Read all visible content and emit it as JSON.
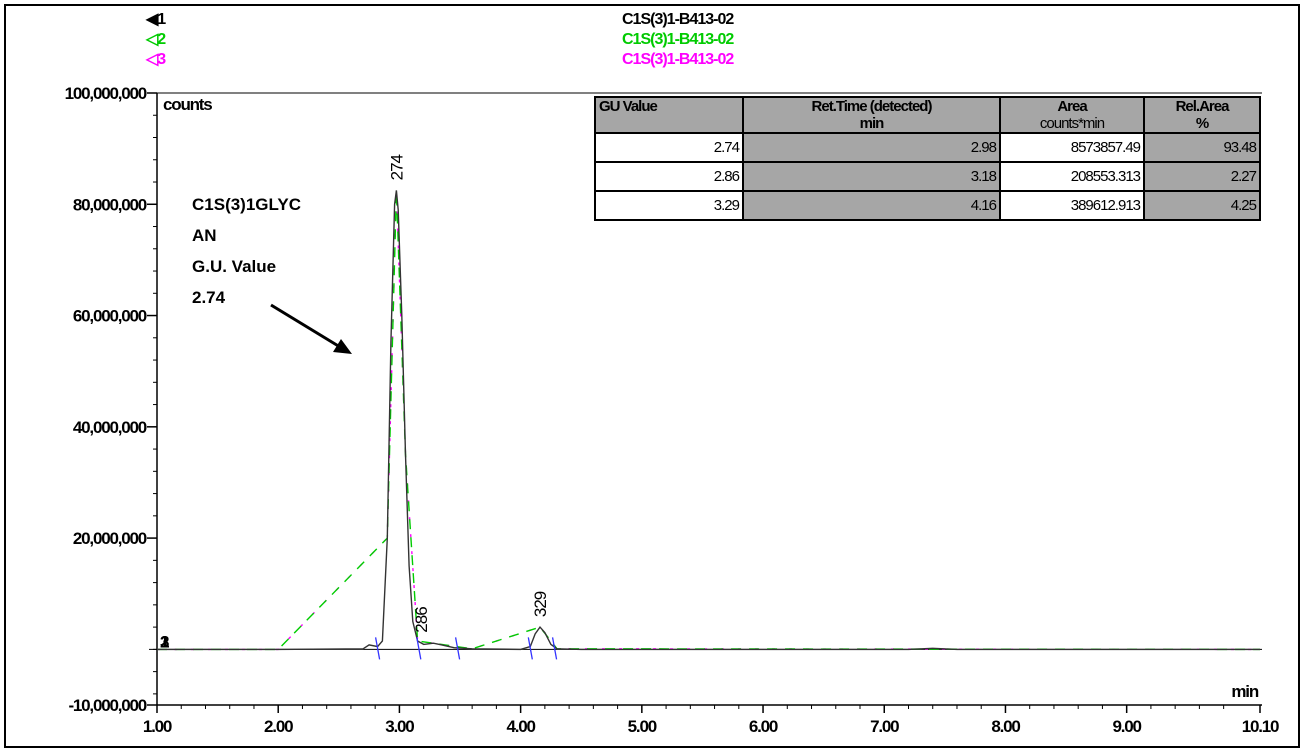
{
  "legend": [
    {
      "marker": "◀1",
      "label": "C1S(3)1-B413-02",
      "color": "#000000"
    },
    {
      "marker": "◁2",
      "label": "C1S(3)1-B413-02",
      "color": "#00cc00"
    },
    {
      "marker": "◁3",
      "label": "C1S(3)1-B413-02",
      "color": "#ff00ff"
    }
  ],
  "annotation": {
    "lines": [
      "C1S(3)1GLYC",
      "AN",
      "G.U. Value",
      "2.74"
    ]
  },
  "table": {
    "headers": [
      {
        "top": "GU Value",
        "unit": ""
      },
      {
        "top": "Ret.Time (detected)",
        "unit": "min"
      },
      {
        "top": "Area",
        "unit": "counts*min"
      },
      {
        "top": "Rel.Area",
        "unit": "%"
      }
    ],
    "rows": [
      [
        "2.74",
        "2.98",
        "8573857.49",
        "93.48"
      ],
      [
        "2.86",
        "3.18",
        "208553.313",
        "2.27"
      ],
      [
        "3.29",
        "4.16",
        "389612.913",
        "4.25"
      ]
    ]
  },
  "chart_data": {
    "type": "line",
    "ylabel": "counts",
    "xlabel": "min",
    "xlim": [
      1.0,
      10.1
    ],
    "ylim": [
      -10000000,
      100000000
    ],
    "x_ticks": [
      "1.00",
      "2.00",
      "3.00",
      "4.00",
      "5.00",
      "6.00",
      "7.00",
      "8.00",
      "9.00",
      "10.10"
    ],
    "y_ticks": [
      "-10,000,000",
      "20,000,000",
      "40,000,000",
      "60,000,000",
      "80,000,000",
      "100,000,000"
    ],
    "series": [
      {
        "name": "1",
        "color": "#333333",
        "points": [
          [
            1.0,
            0
          ],
          [
            2.0,
            0
          ],
          [
            2.7,
            100000
          ],
          [
            2.75,
            800000
          ],
          [
            2.82,
            500000
          ],
          [
            2.86,
            1500000
          ],
          [
            2.9,
            20000000
          ],
          [
            2.93,
            55000000
          ],
          [
            2.96,
            80000000
          ],
          [
            2.975,
            82500000
          ],
          [
            2.99,
            79000000
          ],
          [
            3.02,
            60000000
          ],
          [
            3.05,
            35000000
          ],
          [
            3.08,
            15000000
          ],
          [
            3.11,
            5000000
          ],
          [
            3.15,
            1500000
          ],
          [
            3.2,
            900000
          ],
          [
            3.28,
            1100000
          ],
          [
            3.35,
            800000
          ],
          [
            3.45,
            300000
          ],
          [
            3.6,
            100000
          ],
          [
            4.0,
            0
          ],
          [
            4.08,
            500000
          ],
          [
            4.12,
            2800000
          ],
          [
            4.16,
            4000000
          ],
          [
            4.2,
            3000000
          ],
          [
            4.25,
            900000
          ],
          [
            4.3,
            100000
          ],
          [
            4.5,
            0
          ],
          [
            7.2,
            0
          ],
          [
            7.4,
            200000
          ],
          [
            7.6,
            0
          ],
          [
            10.1,
            0
          ]
        ]
      },
      {
        "name": "2",
        "color": "#00cc00",
        "points": [
          [
            1.0,
            0
          ],
          [
            2.0,
            0
          ],
          [
            2.9,
            20000000
          ],
          [
            2.975,
            82500000
          ],
          [
            3.05,
            35000000
          ],
          [
            3.15,
            1500000
          ],
          [
            3.6,
            100000
          ],
          [
            4.16,
            4000000
          ],
          [
            4.3,
            100000
          ],
          [
            10.1,
            0
          ]
        ]
      },
      {
        "name": "3",
        "color": "#ff00ff",
        "points": [
          [
            1.0,
            0
          ],
          [
            2.0,
            0
          ],
          [
            2.9,
            20000000
          ],
          [
            2.975,
            82500000
          ],
          [
            3.05,
            35000000
          ],
          [
            3.15,
            1500000
          ],
          [
            3.6,
            100000
          ],
          [
            4.16,
            4000000
          ],
          [
            4.3,
            100000
          ],
          [
            10.1,
            0
          ]
        ]
      }
    ],
    "peaks": [
      {
        "x": 2.975,
        "y": 82500000,
        "label": "274"
      },
      {
        "x": 3.18,
        "y": 1200000,
        "label": "286"
      },
      {
        "x": 4.16,
        "y": 4000000,
        "label": "329"
      }
    ],
    "integration_marks": [
      2.82,
      3.16,
      3.48,
      4.08,
      4.28
    ],
    "grid": false,
    "legend_position": "top-center"
  }
}
